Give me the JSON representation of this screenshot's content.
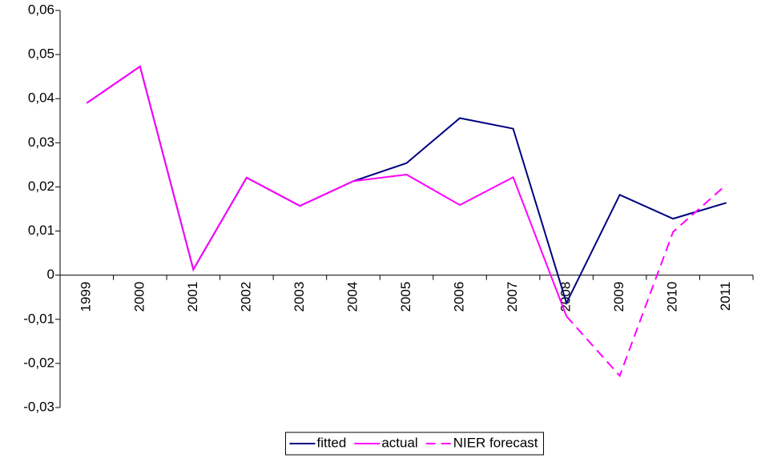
{
  "chart_data": {
    "type": "line",
    "categories": [
      "1999",
      "2000",
      "2001",
      "2002",
      "2003",
      "2004",
      "2005",
      "2006",
      "2007",
      "2008",
      "2009",
      "2010",
      "2011"
    ],
    "series": [
      {
        "name": "fitted",
        "color": "#000080",
        "dash": false,
        "values": [
          0.039,
          0.0473,
          0.0013,
          0.0221,
          0.0157,
          0.0213,
          0.0254,
          0.0356,
          0.0332,
          -0.0063,
          0.0182,
          0.0128,
          0.0164
        ]
      },
      {
        "name": "actual",
        "color": "#ff00ff",
        "dash": false,
        "values": [
          0.039,
          0.0473,
          0.0013,
          0.0221,
          0.0157,
          0.0213,
          0.0228,
          0.0159,
          0.0222,
          -0.0093,
          null,
          null,
          null
        ]
      },
      {
        "name": "NIER forecast",
        "color": "#ff00ff",
        "dash": true,
        "values": [
          null,
          null,
          null,
          null,
          null,
          null,
          null,
          null,
          null,
          -0.0093,
          -0.0228,
          0.0098,
          0.0205
        ]
      }
    ],
    "ylim": [
      -0.03,
      0.06
    ],
    "yticks": [
      {
        "value": 0.06,
        "label": "0,06"
      },
      {
        "value": 0.05,
        "label": "0,05"
      },
      {
        "value": 0.04,
        "label": "0,04"
      },
      {
        "value": 0.03,
        "label": "0,03"
      },
      {
        "value": 0.02,
        "label": "0,02"
      },
      {
        "value": 0.01,
        "label": "0,01"
      },
      0,
      {
        "value": -0.01,
        "label": "-0,01"
      },
      {
        "value": -0.02,
        "label": "-0,02"
      },
      {
        "value": -0.03,
        "label": "-0,03"
      }
    ],
    "grid": false,
    "legend": "bottom"
  }
}
